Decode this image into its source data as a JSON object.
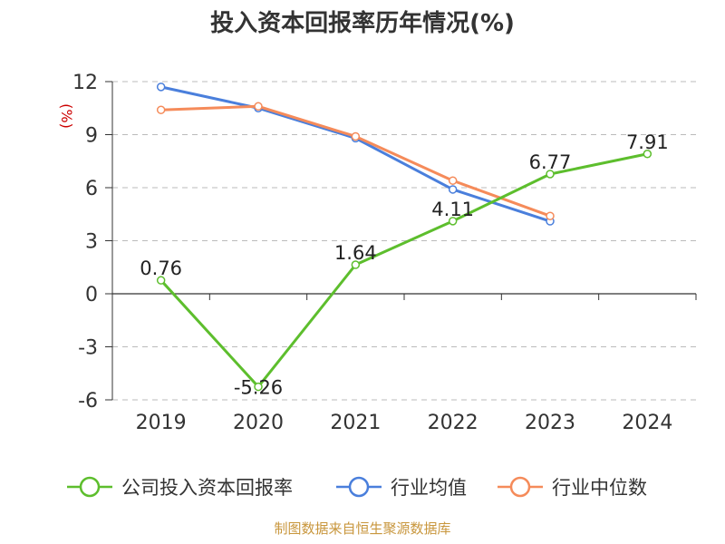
{
  "chart_data": {
    "type": "line",
    "title": "投入资本回报率历年情况(%)",
    "ylabel": "(%)",
    "categories": [
      "2019",
      "2020",
      "2021",
      "2022",
      "2023",
      "2024"
    ],
    "ylim": [
      -6,
      12
    ],
    "yticks": [
      12,
      9,
      6,
      3,
      0,
      -3,
      -6
    ],
    "ytick_labels": [
      "12",
      "9",
      "6",
      "3",
      "0",
      "-3",
      "-6"
    ],
    "grid": true,
    "legend_position": "bottom",
    "series": [
      {
        "name": "公司投入资本回报率",
        "color": "#5dbe2d",
        "values": [
          0.76,
          -5.26,
          1.64,
          4.11,
          6.77,
          7.91
        ],
        "labels": [
          "0.76",
          "-5.26",
          "1.64",
          "4.11",
          "6.77",
          "7.91"
        ]
      },
      {
        "name": "行业均值",
        "color": "#4a7fdc",
        "values": [
          11.7,
          10.5,
          8.8,
          5.9,
          4.1,
          null
        ]
      },
      {
        "name": "行业中位数",
        "color": "#f58b5a",
        "values": [
          10.4,
          10.6,
          8.9,
          6.4,
          4.4,
          null
        ]
      }
    ],
    "source": "制图数据来自恒生聚源数据库",
    "colors": {
      "title": "#333333",
      "ylabel": "#cc0000",
      "source": "#c8963c",
      "grid": "#bbbbbb",
      "axis": "#333333"
    }
  }
}
